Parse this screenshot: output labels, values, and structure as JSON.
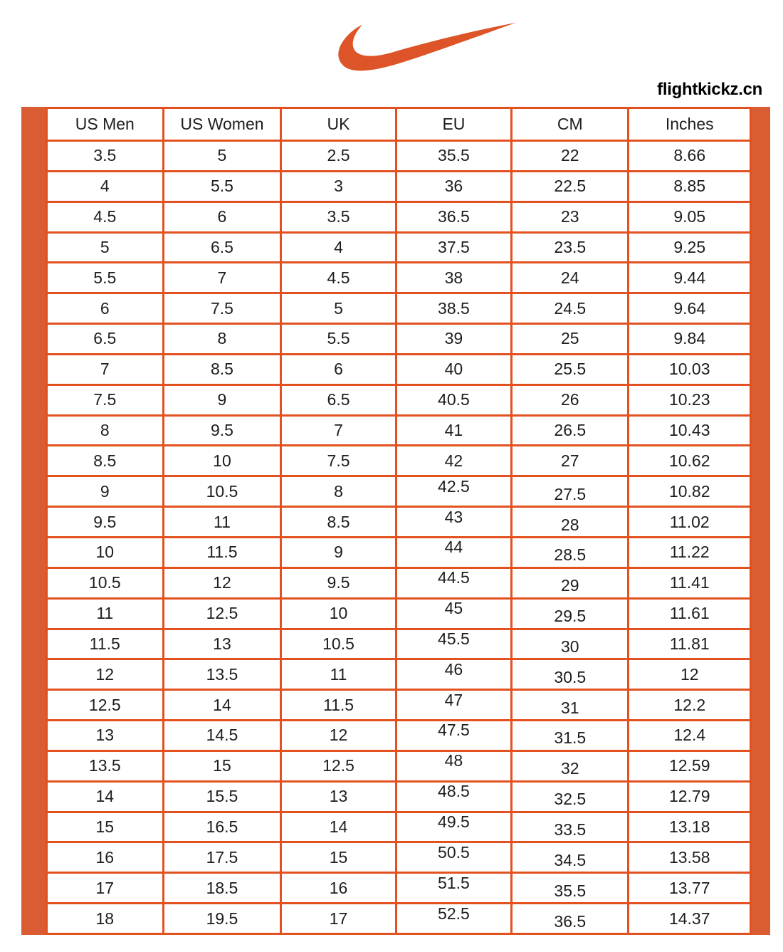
{
  "logo": {
    "icon": "nike-swoosh-icon",
    "color": "#DD5429"
  },
  "watermark": {
    "text": "flightkickz.cn"
  },
  "size_chart": {
    "accent_color": "#E2511E",
    "bar_color": "#DA5C32",
    "columns": [
      "US Men",
      "US Women",
      "UK",
      "EU",
      "CM",
      "Inches"
    ],
    "rows": [
      [
        "3.5",
        "5",
        "2.5",
        "35.5",
        "22",
        "8.66"
      ],
      [
        "4",
        "5.5",
        "3",
        "36",
        "22.5",
        "8.85"
      ],
      [
        "4.5",
        "6",
        "3.5",
        "36.5",
        "23",
        "9.05"
      ],
      [
        "5",
        "6.5",
        "4",
        "37.5",
        "23.5",
        "9.25"
      ],
      [
        "5.5",
        "7",
        "4.5",
        "38",
        "24",
        "9.44"
      ],
      [
        "6",
        "7.5",
        "5",
        "38.5",
        "24.5",
        "9.64"
      ],
      [
        "6.5",
        "8",
        "5.5",
        "39",
        "25",
        "9.84"
      ],
      [
        "7",
        "8.5",
        "6",
        "40",
        "25.5",
        "10.03"
      ],
      [
        "7.5",
        "9",
        "6.5",
        "40.5",
        "26",
        "10.23"
      ],
      [
        "8",
        "9.5",
        "7",
        "41",
        "26.5",
        "10.43"
      ],
      [
        "8.5",
        "10",
        "7.5",
        "42",
        "27",
        "10.62"
      ],
      [
        "9",
        "10.5",
        "8",
        "42.5",
        "27.5",
        "10.82"
      ],
      [
        "9.5",
        "11",
        "8.5",
        "43",
        "28",
        "11.02"
      ],
      [
        "10",
        "11.5",
        "9",
        "44",
        "28.5",
        "11.22"
      ],
      [
        "10.5",
        "12",
        "9.5",
        "44.5",
        "29",
        "11.41"
      ],
      [
        "11",
        "12.5",
        "10",
        "45",
        "29.5",
        "11.61"
      ],
      [
        "11.5",
        "13",
        "10.5",
        "45.5",
        "30",
        "11.81"
      ],
      [
        "12",
        "13.5",
        "11",
        "46",
        "30.5",
        "12"
      ],
      [
        "12.5",
        "14",
        "11.5",
        "47",
        "31",
        "12.2"
      ],
      [
        "13",
        "14.5",
        "12",
        "47.5",
        "31.5",
        "12.4"
      ],
      [
        "13.5",
        "15",
        "12.5",
        "48",
        "32",
        "12.59"
      ],
      [
        "14",
        "15.5",
        "13",
        "48.5",
        "32.5",
        "12.79"
      ],
      [
        "15",
        "16.5",
        "14",
        "49.5",
        "33.5",
        "13.18"
      ],
      [
        "16",
        "17.5",
        "15",
        "50.5",
        "34.5",
        "13.58"
      ],
      [
        "17",
        "18.5",
        "16",
        "51.5",
        "35.5",
        "13.77"
      ],
      [
        "18",
        "19.5",
        "17",
        "52.5",
        "36.5",
        "14.37"
      ]
    ]
  }
}
